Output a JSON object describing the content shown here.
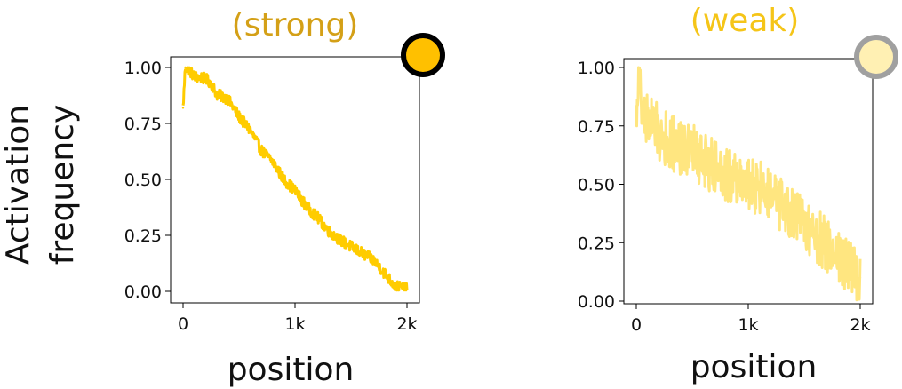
{
  "figure": {
    "ylabel_line1": "Activation",
    "ylabel_line2": "frequency"
  },
  "chart_data": [
    {
      "type": "line",
      "title": "(strong)",
      "title_color": "#D4A017",
      "line_color": "#FFCC00",
      "marker": {
        "fill": "#FFC000",
        "stroke": "#000000"
      },
      "xlabel": "position",
      "ylabel": "",
      "xlim": [
        0,
        2000
      ],
      "ylim": [
        0,
        1.05
      ],
      "xticks": [
        0,
        1000,
        2000
      ],
      "xtick_labels": [
        "0",
        "1k",
        "2k"
      ],
      "yticks": [
        0,
        0.25,
        0.5,
        0.75,
        1.0
      ],
      "ytick_labels": [
        "0.00",
        "0.25",
        "0.50",
        "0.75",
        "1.00"
      ],
      "grid": false,
      "noise": 0.025,
      "series": [
        {
          "x": [
            0,
            20,
            50,
            100,
            200,
            250,
            300,
            400,
            500,
            600,
            700,
            800,
            900,
            1000,
            1100,
            1200,
            1300,
            1400,
            1500,
            1600,
            1700,
            1800,
            1850,
            1900,
            1950,
            2000
          ],
          "y": [
            0.82,
            1.0,
            0.99,
            0.96,
            0.95,
            0.93,
            0.88,
            0.86,
            0.78,
            0.72,
            0.63,
            0.58,
            0.5,
            0.45,
            0.38,
            0.33,
            0.27,
            0.23,
            0.2,
            0.17,
            0.14,
            0.08,
            0.05,
            0.02,
            0.02,
            0.01
          ]
        }
      ]
    },
    {
      "type": "line",
      "title": "(weak)",
      "title_color": "#F5C518",
      "line_color": "#FFE680",
      "marker": {
        "fill": "#FFF0B3",
        "stroke": "#A0A0A0"
      },
      "xlabel": "position",
      "ylabel": "",
      "xlim": [
        0,
        2000
      ],
      "ylim": [
        0,
        1.05
      ],
      "xticks": [
        0,
        1000,
        2000
      ],
      "xtick_labels": [
        "0",
        "1k",
        "2k"
      ],
      "yticks": [
        0,
        0.25,
        0.5,
        0.75,
        1.0
      ],
      "ytick_labels": [
        "0.00",
        "0.25",
        "0.50",
        "0.75",
        "1.00"
      ],
      "grid": false,
      "noise": 0.12,
      "series": [
        {
          "x": [
            0,
            20,
            50,
            100,
            200,
            300,
            400,
            500,
            600,
            700,
            800,
            900,
            1000,
            1100,
            1200,
            1300,
            1400,
            1500,
            1600,
            1700,
            1800,
            1900,
            2000
          ],
          "y": [
            0.78,
            1.0,
            0.8,
            0.78,
            0.72,
            0.68,
            0.66,
            0.64,
            0.6,
            0.58,
            0.55,
            0.52,
            0.5,
            0.48,
            0.45,
            0.4,
            0.36,
            0.33,
            0.28,
            0.24,
            0.2,
            0.15,
            0.1
          ]
        }
      ]
    }
  ]
}
